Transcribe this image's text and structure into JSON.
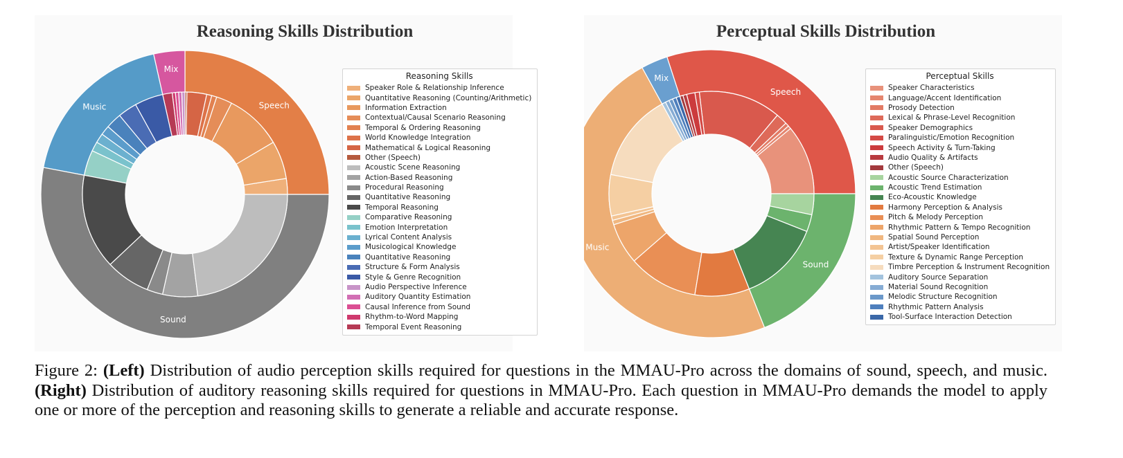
{
  "chart_data": [
    {
      "type": "pie",
      "subtype": "nested donut",
      "title": "Reasoning Skills Distribution",
      "legend_title": "Reasoning Skills",
      "legend_placement": "right",
      "outer": [
        {
          "label": "Speech",
          "value": 25.0,
          "color": "#e37f47"
        },
        {
          "label": "Mix",
          "value": 3.5,
          "color": "#d6579f"
        },
        {
          "label": "Music",
          "value": 18.5,
          "color": "#559bc8"
        },
        {
          "label": "Sound",
          "value": 53.0,
          "color": "#808080"
        }
      ],
      "inner": [
        {
          "label": "Speaker Role & Relationship Inference",
          "group": "Speech",
          "value": 2.5,
          "color": "#efb07a"
        },
        {
          "label": "Quantitative Reasoning (Counting/Arithmetic)",
          "group": "Speech",
          "value": 6.0,
          "color": "#eba569"
        },
        {
          "label": "Information Extraction",
          "group": "Speech",
          "value": 9.0,
          "color": "#e8995e"
        },
        {
          "label": "Contextual/Causal Scenario Reasoning",
          "group": "Speech",
          "value": 2.5,
          "color": "#e58d58"
        },
        {
          "label": "Temporal & Ordering Reasoning",
          "group": "Speech",
          "value": 0.8,
          "color": "#e28150"
        },
        {
          "label": "World Knowledge Integration",
          "group": "Speech",
          "value": 0.8,
          "color": "#dd7249"
        },
        {
          "label": "Mathematical & Logical Reasoning",
          "group": "Speech",
          "value": 3.1,
          "color": "#d56545"
        },
        {
          "label": "Other (Speech)",
          "group": "Speech",
          "value": 0.3,
          "color": "#b55a3e"
        },
        {
          "label": "Audio Perspective Inference",
          "group": "Mix",
          "value": 0.5,
          "color": "#c894c8"
        },
        {
          "label": "Auditory Quantity Estimation",
          "group": "Mix",
          "value": 0.5,
          "color": "#d26fb4"
        },
        {
          "label": "Causal Inference from Sound",
          "group": "Mix",
          "value": 0.5,
          "color": "#db4f93"
        },
        {
          "label": "Rhythm-to-Word Mapping",
          "group": "Mix",
          "value": 0.5,
          "color": "#cf3a6e"
        },
        {
          "label": "Temporal Event Reasoning",
          "group": "Mix",
          "value": 1.5,
          "color": "#b63a55"
        },
        {
          "label": "Style & Genre Recognition",
          "group": "Music",
          "value": 4.5,
          "color": "#3a5aa6"
        },
        {
          "label": "Structure & Form Analysis",
          "group": "Music",
          "value": 3.0,
          "color": "#4a6cb4"
        },
        {
          "label": "Quantitative Reasoning",
          "group": "Music",
          "value": 2.5,
          "color": "#4a82bc"
        },
        {
          "label": "Musicological Knowledge",
          "group": "Music",
          "value": 1.5,
          "color": "#5b9ccb"
        },
        {
          "label": "Lyrical Content Analysis",
          "group": "Music",
          "value": 1.5,
          "color": "#6bb0cf"
        },
        {
          "label": "Emotion Interpretation",
          "group": "Music",
          "value": 1.5,
          "color": "#7ac2cc"
        },
        {
          "label": "Comparative Reasoning",
          "group": "Music",
          "value": 4.0,
          "color": "#95d0c6"
        },
        {
          "label": "Temporal Reasoning",
          "group": "Sound",
          "value": 15.0,
          "color": "#4a4a4a"
        },
        {
          "label": "Quantitative Reasoning",
          "group": "Sound",
          "value": 7.0,
          "color": "#666666"
        },
        {
          "label": "Procedural Reasoning",
          "group": "Sound",
          "value": 2.5,
          "color": "#8a8a8a"
        },
        {
          "label": "Action-Based Reasoning",
          "group": "Sound",
          "value": 5.5,
          "color": "#a3a3a3"
        },
        {
          "label": "Acoustic Scene Reasoning",
          "group": "Sound",
          "value": 23.0,
          "color": "#bdbdbd"
        }
      ],
      "legend": [
        {
          "label": "Speaker Role & Relationship Inference",
          "color": "#efb07a"
        },
        {
          "label": "Quantitative Reasoning (Counting/Arithmetic)",
          "color": "#eba569"
        },
        {
          "label": "Information Extraction",
          "color": "#e8995e"
        },
        {
          "label": "Contextual/Causal Scenario Reasoning",
          "color": "#e58d58"
        },
        {
          "label": "Temporal & Ordering Reasoning",
          "color": "#e28150"
        },
        {
          "label": "World Knowledge Integration",
          "color": "#dd7249"
        },
        {
          "label": "Mathematical & Logical Reasoning",
          "color": "#d56545"
        },
        {
          "label": "Other (Speech)",
          "color": "#b55a3e"
        },
        {
          "label": "Acoustic Scene Reasoning",
          "color": "#bdbdbd"
        },
        {
          "label": "Action-Based Reasoning",
          "color": "#a3a3a3"
        },
        {
          "label": "Procedural Reasoning",
          "color": "#8a8a8a"
        },
        {
          "label": "Quantitative Reasoning",
          "color": "#666666"
        },
        {
          "label": "Temporal Reasoning",
          "color": "#4a4a4a"
        },
        {
          "label": "Comparative Reasoning",
          "color": "#95d0c6"
        },
        {
          "label": "Emotion Interpretation",
          "color": "#7ac2cc"
        },
        {
          "label": "Lyrical Content Analysis",
          "color": "#6bb0cf"
        },
        {
          "label": "Musicological Knowledge",
          "color": "#5b9ccb"
        },
        {
          "label": "Quantitative Reasoning",
          "color": "#4a82bc"
        },
        {
          "label": "Structure & Form Analysis",
          "color": "#4a6cb4"
        },
        {
          "label": "Style & Genre Recognition",
          "color": "#3a5aa6"
        },
        {
          "label": "Audio Perspective Inference",
          "color": "#c894c8"
        },
        {
          "label": "Auditory Quantity Estimation",
          "color": "#d26fb4"
        },
        {
          "label": "Causal Inference from Sound",
          "color": "#db4f93"
        },
        {
          "label": "Rhythm-to-Word Mapping",
          "color": "#cf3a6e"
        },
        {
          "label": "Temporal Event Reasoning",
          "color": "#b63a55"
        }
      ]
    },
    {
      "type": "pie",
      "subtype": "nested donut",
      "title": "Perceptual Skills Distribution",
      "legend_title": "Perceptual Skills",
      "legend_placement": "right",
      "outer": [
        {
          "label": "Speech",
          "value": 30.0,
          "color": "#df5749"
        },
        {
          "label": "Mix",
          "value": 3.0,
          "color": "#6a9fcf"
        },
        {
          "label": "Music",
          "value": 48.0,
          "color": "#edae75"
        },
        {
          "label": "Sound",
          "value": 19.0,
          "color": "#6cb36d"
        }
      ],
      "inner": [
        {
          "label": "Speaker Characteristics",
          "group": "Speech",
          "value": 11.0,
          "color": "#e8927b"
        },
        {
          "label": "Language/Accent Identification",
          "group": "Speech",
          "value": 0.5,
          "color": "#e5866f"
        },
        {
          "label": "Prosody Detection",
          "group": "Speech",
          "value": 0.6,
          "color": "#e27a64"
        },
        {
          "label": "Lexical & Phrase-Level Recognition",
          "group": "Speech",
          "value": 1.8,
          "color": "#de6a59"
        },
        {
          "label": "Speaker Demographics",
          "group": "Speech",
          "value": 13.0,
          "color": "#d9594d"
        },
        {
          "label": "Paralinguistic/Emotion Recognition",
          "group": "Speech",
          "value": 0.7,
          "color": "#d44a45"
        },
        {
          "label": "Speech Activity & Turn-Taking",
          "group": "Speech",
          "value": 1.3,
          "color": "#cc3b3d"
        },
        {
          "label": "Audio Quality & Artifacts",
          "group": "Speech",
          "value": 0.6,
          "color": "#b83a3f"
        },
        {
          "label": "Other (Speech)",
          "group": "Speech",
          "value": 0.5,
          "color": "#a33a3d"
        },
        {
          "label": "Tool-Surface Interaction Detection",
          "group": "Mix",
          "value": 0.6,
          "color": "#3b68a8"
        },
        {
          "label": "Rhythmic Pattern Analysis",
          "group": "Mix",
          "value": 0.6,
          "color": "#4e7fbd"
        },
        {
          "label": "Melodic Structure Recognition",
          "group": "Mix",
          "value": 0.6,
          "color": "#6b98c9"
        },
        {
          "label": "Material Sound Recognition",
          "group": "Mix",
          "value": 0.6,
          "color": "#86acd4"
        },
        {
          "label": "Auditory Source Separation",
          "group": "Mix",
          "value": 0.6,
          "color": "#a3c3de"
        },
        {
          "label": "Timbre Perception & Instrument Recognition",
          "group": "Music",
          "value": 14.0,
          "color": "#f6dcbe"
        },
        {
          "label": "Texture & Dynamic Range Perception",
          "group": "Music",
          "value": 6.5,
          "color": "#f5cfa3"
        },
        {
          "label": "Artist/Speaker Identification",
          "group": "Music",
          "value": 0.7,
          "color": "#f3c493"
        },
        {
          "label": "Spatial Sound Perception",
          "group": "Music",
          "value": 0.7,
          "color": "#f0b780"
        },
        {
          "label": "Rhythmic Pattern & Tempo Recognition",
          "group": "Music",
          "value": 6.5,
          "color": "#eda56a"
        },
        {
          "label": "Pitch & Melody Perception",
          "group": "Music",
          "value": 11.0,
          "color": "#e98f55"
        },
        {
          "label": "Harmony Perception & Analysis",
          "group": "Music",
          "value": 8.6,
          "color": "#e27a40"
        },
        {
          "label": "Eco-Acoustic Knowledge",
          "group": "Sound",
          "value": 13.0,
          "color": "#468552"
        },
        {
          "label": "Acoustic Trend Estimation",
          "group": "Sound",
          "value": 2.7,
          "color": "#6cb36d"
        },
        {
          "label": "Acoustic Source Characterization",
          "group": "Sound",
          "value": 3.3,
          "color": "#a7d49f"
        }
      ],
      "legend": [
        {
          "label": "Speaker Characteristics",
          "color": "#e8927b"
        },
        {
          "label": "Language/Accent Identification",
          "color": "#e5866f"
        },
        {
          "label": "Prosody Detection",
          "color": "#e27a64"
        },
        {
          "label": "Lexical & Phrase-Level Recognition",
          "color": "#de6a59"
        },
        {
          "label": "Speaker Demographics",
          "color": "#d9594d"
        },
        {
          "label": "Paralinguistic/Emotion Recognition",
          "color": "#d44a45"
        },
        {
          "label": "Speech Activity & Turn-Taking",
          "color": "#cc3b3d"
        },
        {
          "label": "Audio Quality & Artifacts",
          "color": "#b83a3f"
        },
        {
          "label": "Other (Speech)",
          "color": "#a33a3d"
        },
        {
          "label": "Acoustic Source Characterization",
          "color": "#a7d49f"
        },
        {
          "label": "Acoustic Trend Estimation",
          "color": "#6cb36d"
        },
        {
          "label": "Eco-Acoustic Knowledge",
          "color": "#468552"
        },
        {
          "label": "Harmony Perception & Analysis",
          "color": "#e27a40"
        },
        {
          "label": "Pitch & Melody Perception",
          "color": "#e98f55"
        },
        {
          "label": "Rhythmic Pattern & Tempo Recognition",
          "color": "#eda56a"
        },
        {
          "label": "Spatial Sound Perception",
          "color": "#f0b780"
        },
        {
          "label": "Artist/Speaker Identification",
          "color": "#f3c493"
        },
        {
          "label": "Texture & Dynamic Range Perception",
          "color": "#f5cfa3"
        },
        {
          "label": "Timbre Perception & Instrument Recognition",
          "color": "#f6dcbe"
        },
        {
          "label": "Auditory Source Separation",
          "color": "#a3c3de"
        },
        {
          "label": "Material Sound Recognition",
          "color": "#86acd4"
        },
        {
          "label": "Melodic Structure Recognition",
          "color": "#6b98c9"
        },
        {
          "label": "Rhythmic Pattern Analysis",
          "color": "#4e7fbd"
        },
        {
          "label": "Tool-Surface Interaction Detection",
          "color": "#3b68a8"
        }
      ]
    }
  ],
  "caption": {
    "label": "Figure 2:",
    "left_tag": "(Left)",
    "left_text": "Distribution of audio perception skills required for questions in the MMAU-Pro across the domains of sound, speech, and music.",
    "right_tag": "(Right)",
    "right_text": "Distribution of auditory reasoning skills required for questions in MMAU-Pro. Each question in MMAU-Pro demands the model to apply one or more of the perception and reasoning skills to generate a reliable and accurate response."
  }
}
